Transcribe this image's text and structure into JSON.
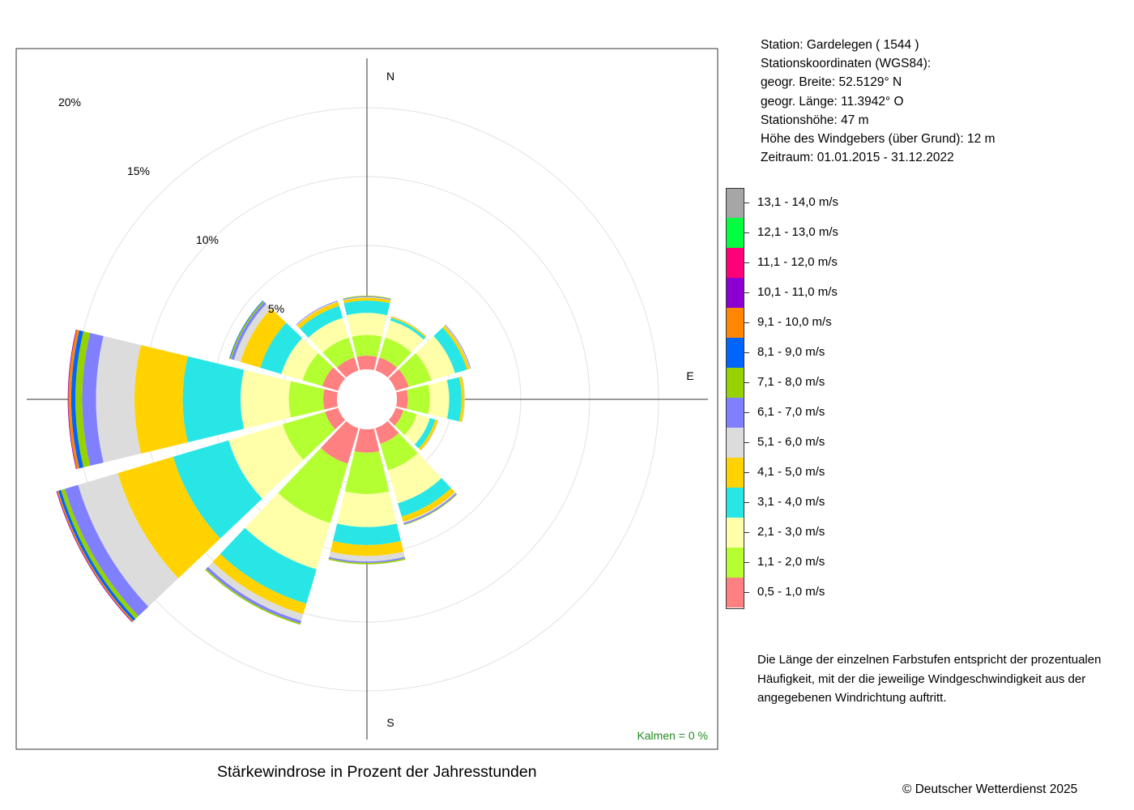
{
  "station": {
    "line1": "Station:  Gardelegen  ( 1544 )",
    "line2": "Stationskoordinaten (WGS84):",
    "line3": "geogr. Breite: 52.5129° N",
    "line4": "geogr. Länge: 11.3942° O",
    "line5": "Stationshöhe: 47 m",
    "line6": "Höhe des Windgebers (über Grund): 12 m",
    "line7": "Zeitraum: 01.01.2015 - 31.12.2022"
  },
  "legend": [
    {
      "label": "13,1 - 14,0 m/s",
      "color": "#a6a6a6"
    },
    {
      "label": "12,1 - 13,0 m/s",
      "color": "#00ff40"
    },
    {
      "label": "11,1 - 12,0 m/s",
      "color": "#ff0078"
    },
    {
      "label": "10,1 - 11,0 m/s",
      "color": "#8c00d2"
    },
    {
      "label": "9,1 - 10,0 m/s",
      "color": "#ff8800"
    },
    {
      "label": "8,1 - 9,0 m/s",
      "color": "#0064ff"
    },
    {
      "label": "7,1 - 8,0 m/s",
      "color": "#96d200"
    },
    {
      "label": "6,1 - 7,0 m/s",
      "color": "#8080ff"
    },
    {
      "label": "5,1 - 6,0 m/s",
      "color": "#dcdcdc"
    },
    {
      "label": "4,1 - 5,0 m/s",
      "color": "#ffd200"
    },
    {
      "label": "3,1 - 4,0 m/s",
      "color": "#28e6e6"
    },
    {
      "label": "2,1 - 3,0 m/s",
      "color": "#ffffaa"
    },
    {
      "label": "1,1 - 2,0 m/s",
      "color": "#b4ff32"
    },
    {
      "label": "0,5 - 1,0 m/s",
      "color": "#ff8080"
    }
  ],
  "note": "Die Länge der einzelnen Farbstufen entspricht der prozentualen Häufigkeit, mit der die jeweilige Windgeschwindigkeit aus der angegebenen Windrichtung auftritt.",
  "caption": "Stärkewindrose in Prozent der Jahresstunden",
  "copyright": "© Deutscher Wetterdienst  2025",
  "calm": "Kalmen  =  0 %",
  "calm_color": "#228b22",
  "chart_data": {
    "type": "wind-rose",
    "title": "Stärkewindrose in Prozent der Jahresstunden",
    "directions": [
      "N",
      "30°",
      "60°",
      "E",
      "120°",
      "150°",
      "S",
      "210°",
      "240°",
      "270°",
      "300°",
      "330°"
    ],
    "direction_angles_deg": [
      0,
      30,
      60,
      90,
      120,
      150,
      180,
      210,
      240,
      270,
      300,
      330
    ],
    "compass_labels": [
      "N",
      "E",
      "S"
    ],
    "ring_labels": [
      "5%",
      "10%",
      "15%",
      "20%"
    ],
    "rings_percent": [
      5,
      10,
      15,
      20
    ],
    "r_max_percent": 20,
    "inner_radius_percent": 1,
    "speed_classes": [
      "0,5 - 1,0 m/s",
      "1,1 - 2,0 m/s",
      "2,1 - 3,0 m/s",
      "3,1 - 4,0 m/s",
      "4,1 - 5,0 m/s",
      "5,1 - 6,0 m/s",
      "6,1 - 7,0 m/s",
      "7,1 - 8,0 m/s",
      "8,1 - 9,0 m/s",
      "9,1 - 10,0 m/s",
      "10,1 - 11,0 m/s",
      "11,1 - 12,0 m/s",
      "12,1 - 13,0 m/s",
      "13,1 - 14,0 m/s"
    ],
    "colors": [
      "#ff8080",
      "#b4ff32",
      "#ffffaa",
      "#28e6e6",
      "#ffd200",
      "#dcdcdc",
      "#8080ff",
      "#96d200",
      "#0064ff",
      "#ff8800",
      "#8c00d2",
      "#ff0078",
      "#00ff40",
      "#a6a6a6"
    ],
    "series": [
      {
        "direction": "N",
        "values": [
          1.0,
          1.5,
          1.6,
          0.9,
          0.2,
          0.05,
          0.05,
          0.05
        ]
      },
      {
        "direction": "30°",
        "values": [
          1.0,
          1.5,
          1.3,
          0.2,
          0.1,
          0.05
        ]
      },
      {
        "direction": "60°",
        "values": [
          1.0,
          1.7,
          1.8,
          0.9,
          0.2,
          0.05,
          0.05
        ]
      },
      {
        "direction": "E",
        "values": [
          0.8,
          1.6,
          1.4,
          0.9,
          0.2,
          0.05
        ]
      },
      {
        "direction": "120°",
        "values": [
          0.6,
          1.0,
          1.0,
          0.4,
          0.2,
          0.05
        ]
      },
      {
        "direction": "150°",
        "values": [
          1.2,
          2.0,
          2.5,
          1.0,
          0.4,
          0.1,
          0.1,
          0.05
        ]
      },
      {
        "direction": "S",
        "values": [
          1.7,
          3.0,
          2.4,
          1.3,
          0.8,
          0.4,
          0.1,
          0.1
        ]
      },
      {
        "direction": "210°",
        "values": [
          2.7,
          4.5,
          3.5,
          2.6,
          0.8,
          0.5,
          0.2,
          0.1
        ]
      },
      {
        "direction": "240°",
        "values": [
          1.0,
          3.2,
          4.1,
          4.2,
          4.2,
          3.0,
          1.0,
          0.3,
          0.2,
          0.1,
          0.05
        ]
      },
      {
        "direction": "270°",
        "values": [
          1.0,
          2.5,
          3.5,
          4.2,
          3.5,
          2.8,
          1.0,
          0.5,
          0.3,
          0.2,
          0.05
        ]
      },
      {
        "direction": "300°",
        "values": [
          1.2,
          1.5,
          1.6,
          1.6,
          1.5,
          0.5,
          0.2,
          0.1,
          0.05
        ]
      },
      {
        "direction": "330°",
        "values": [
          1.0,
          1.5,
          1.5,
          0.9,
          0.3,
          0.05,
          0.05
        ]
      }
    ]
  }
}
